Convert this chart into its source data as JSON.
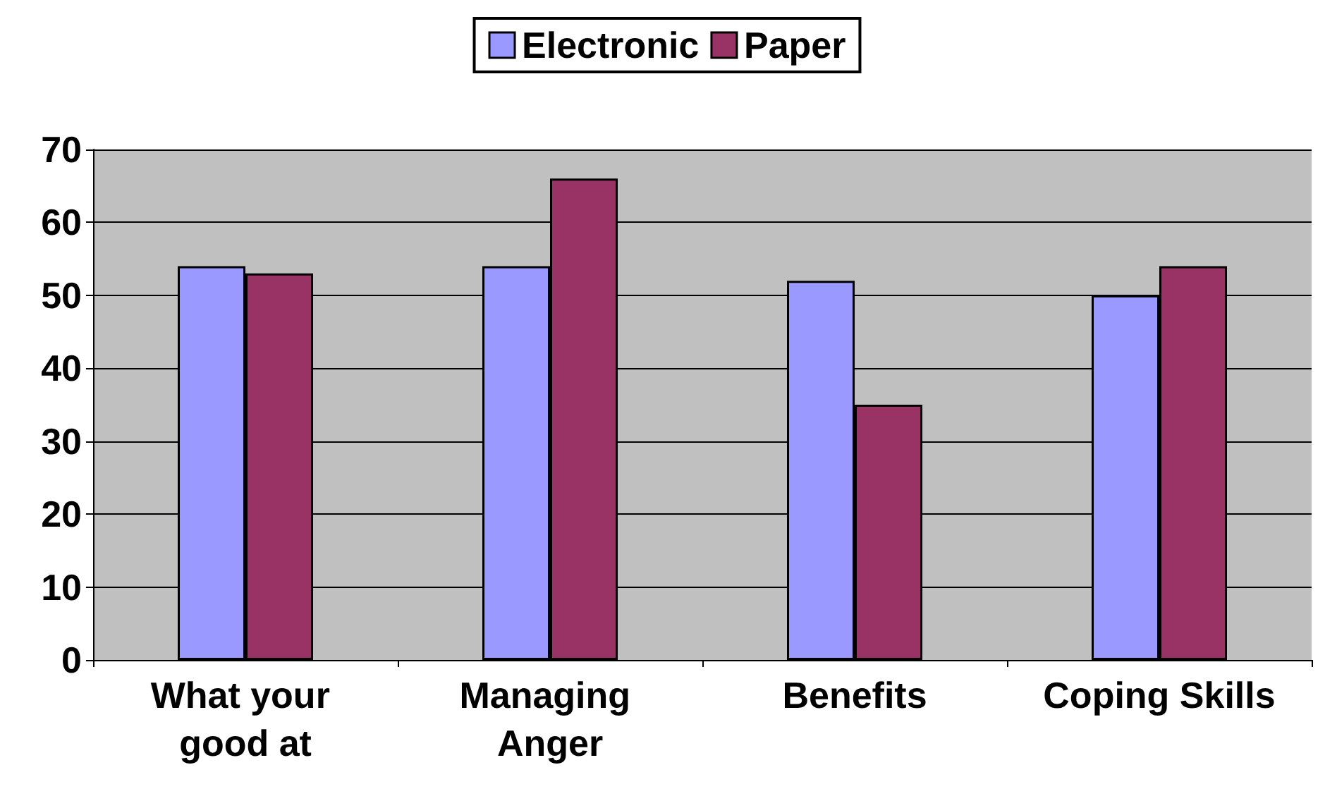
{
  "chart_data": {
    "type": "bar",
    "categories": [
      "What your good at",
      "Managing Anger",
      "Benefits",
      "Coping Skills"
    ],
    "series": [
      {
        "name": "Electronic",
        "color": "#9999ff",
        "values": [
          54,
          54,
          52,
          50
        ]
      },
      {
        "name": "Paper",
        "color": "#993366",
        "values": [
          53,
          66,
          35,
          54
        ]
      }
    ],
    "ylim": [
      0,
      70
    ],
    "yticks": [
      0,
      10,
      20,
      30,
      40,
      50,
      60,
      70
    ],
    "grid": "y",
    "legend": "top"
  }
}
